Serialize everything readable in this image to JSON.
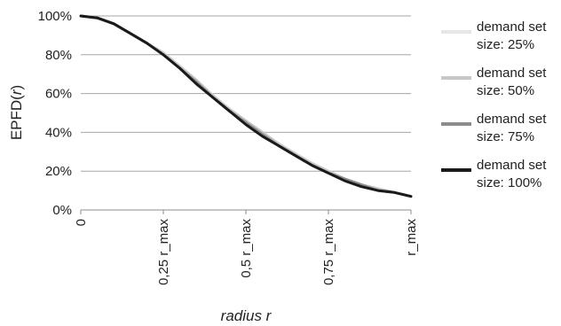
{
  "chart_data": {
    "type": "line",
    "title": "",
    "xlabel": "radius r",
    "ylabel": {
      "prefix": "EPFD(",
      "var": "r",
      "suffix": ")"
    },
    "x_ticks": [
      "0",
      "0,25 r_max",
      "0,5 r_max",
      "0,75 r_max",
      "r_max"
    ],
    "y_ticks": [
      "0%",
      "20%",
      "40%",
      "60%",
      "80%",
      "100%"
    ],
    "xlim": [
      0,
      1
    ],
    "ylim": [
      0,
      100
    ],
    "grid": "horizontal",
    "legend_position": "right",
    "x": [
      0,
      0.05,
      0.1,
      0.15,
      0.2,
      0.25,
      0.3,
      0.35,
      0.4,
      0.45,
      0.5,
      0.55,
      0.6,
      0.65,
      0.7,
      0.75,
      0.8,
      0.85,
      0.9,
      0.95,
      1.0
    ],
    "series": [
      {
        "name": [
          "demand set",
          "size: 25%"
        ],
        "color": "#e6e6e6",
        "stroke_width": 3,
        "values": [
          100,
          99,
          96,
          91,
          86,
          81,
          74,
          67,
          59,
          52,
          46,
          40,
          34,
          29,
          24,
          20,
          16,
          13,
          11,
          9,
          7
        ]
      },
      {
        "name": [
          "demand set",
          "size: 50%"
        ],
        "color": "#c8c8c8",
        "stroke_width": 3,
        "values": [
          100,
          99,
          96,
          91,
          86,
          81,
          74,
          67,
          59,
          52,
          46,
          40,
          34,
          29,
          24,
          20,
          16,
          13,
          11,
          9,
          7
        ]
      },
      {
        "name": [
          "demand set",
          "size: 75%"
        ],
        "color": "#8c8c8c",
        "stroke_width": 3,
        "values": [
          100,
          99,
          96,
          91,
          86,
          80,
          73,
          66,
          58,
          51,
          45,
          39,
          33,
          28,
          23,
          19,
          16,
          13,
          10,
          9,
          7
        ]
      },
      {
        "name": [
          "demand set",
          "size: 100%"
        ],
        "color": "#1a1a1a",
        "stroke_width": 3,
        "values": [
          100,
          99,
          96,
          91,
          86,
          80,
          73,
          65,
          58,
          51,
          44,
          38,
          33,
          28,
          23,
          19,
          15,
          12,
          10,
          9,
          7
        ]
      }
    ]
  }
}
